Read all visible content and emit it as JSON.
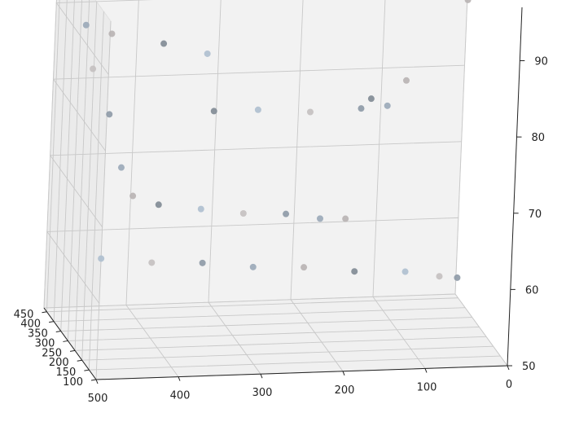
{
  "chart_data": {
    "type": "scatter",
    "projection": "3d",
    "title": "",
    "xlabel": "",
    "ylabel": "",
    "zlabel": "",
    "grid": true,
    "xlim": [
      0,
      500
    ],
    "ylim": [
      100,
      470
    ],
    "zlim": [
      50,
      97
    ],
    "x_ticks": [
      "500",
      "400",
      "300",
      "200",
      "100",
      "0"
    ],
    "y_ticks": [
      "450",
      "400",
      "350",
      "300",
      "250",
      "200",
      "150",
      "100"
    ],
    "z_ticks": [
      "90",
      "80",
      "70",
      "60",
      "50"
    ],
    "series": [
      {
        "style": "point cloud, grey-blue shades",
        "points": [
          [
            470,
            430,
            88
          ],
          [
            440,
            420,
            87
          ],
          [
            380,
            400,
            86
          ],
          [
            330,
            380,
            85
          ],
          [
            465,
            400,
            83
          ],
          [
            450,
            360,
            78
          ],
          [
            440,
            320,
            72
          ],
          [
            430,
            290,
            69
          ],
          [
            400,
            280,
            68
          ],
          [
            350,
            270,
            67.5
          ],
          [
            300,
            260,
            67
          ],
          [
            250,
            250,
            67
          ],
          [
            210,
            240,
            66.5
          ],
          [
            180,
            235,
            66.5
          ],
          [
            330,
            320,
            79
          ],
          [
            280,
            300,
            79.5
          ],
          [
            220,
            280,
            79.5
          ],
          [
            160,
            270,
            80
          ],
          [
            130,
            260,
            80.5
          ],
          [
            110,
            250,
            84
          ],
          [
            150,
            260,
            81.5
          ],
          [
            480,
            210,
            63
          ],
          [
            420,
            200,
            62.5
          ],
          [
            360,
            190,
            62.5
          ],
          [
            300,
            180,
            62
          ],
          [
            240,
            170,
            62
          ],
          [
            180,
            160,
            61.5
          ],
          [
            120,
            150,
            61.5
          ],
          [
            80,
            140,
            61
          ],
          [
            60,
            130,
            61
          ],
          [
            40,
            300,
            94
          ],
          [
            30,
            300,
            93
          ]
        ]
      }
    ]
  }
}
